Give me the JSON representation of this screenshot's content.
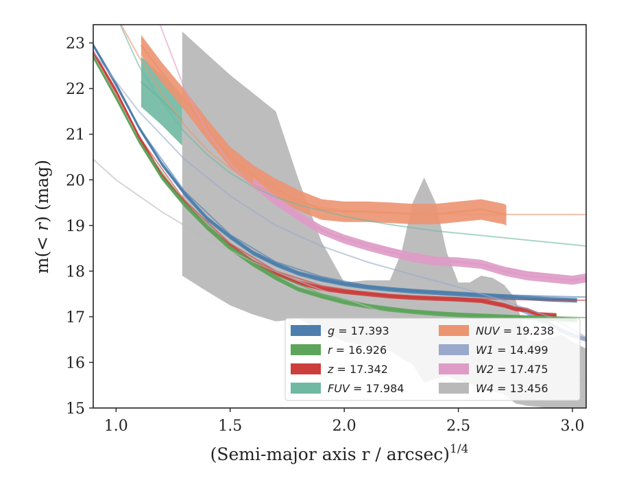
{
  "chart_data": {
    "type": "line",
    "xlabel": "(Semi-major axis r / arcsec)",
    "xlabel_exp": "1/4",
    "ylabel_prefix": "m(",
    "ylabel_math": "< r",
    "ylabel_suffix": ") (mag)",
    "xlim": [
      0.9,
      3.06
    ],
    "ylim": [
      23.4,
      15.0
    ],
    "y_inverted": true,
    "xticks": [
      1.0,
      1.5,
      2.0,
      2.5,
      3.0
    ],
    "xtick_labels": [
      "1.0",
      "1.5",
      "2.0",
      "2.5",
      "3.0"
    ],
    "yticks": [
      15,
      16,
      17,
      18,
      19,
      20,
      21,
      22,
      23
    ],
    "ytick_labels": [
      "15",
      "16",
      "17",
      "18",
      "19",
      "20",
      "21",
      "22",
      "23"
    ],
    "grid": false,
    "legend_position": "lower-right",
    "series": [
      {
        "name": "g = 17.393",
        "name_var": "g",
        "name_rest": " = 17.393",
        "color": "#4c7fad",
        "data_width": 0.1,
        "data": [
          [
            0.9,
            22.95
          ],
          [
            1.0,
            22.1
          ],
          [
            1.1,
            21.15
          ],
          [
            1.2,
            20.35
          ],
          [
            1.3,
            19.7
          ],
          [
            1.4,
            19.15
          ],
          [
            1.5,
            18.75
          ],
          [
            1.6,
            18.4
          ],
          [
            1.7,
            18.15
          ],
          [
            1.8,
            17.95
          ],
          [
            1.9,
            17.82
          ],
          [
            2.0,
            17.72
          ],
          [
            2.1,
            17.65
          ],
          [
            2.2,
            17.6
          ],
          [
            2.3,
            17.56
          ],
          [
            2.4,
            17.53
          ],
          [
            2.5,
            17.5
          ],
          [
            2.6,
            17.47
          ],
          [
            2.7,
            17.44
          ],
          [
            2.8,
            17.41
          ],
          [
            2.9,
            17.38
          ],
          [
            3.02,
            17.36
          ]
        ],
        "model": [
          [
            0.9,
            22.95
          ],
          [
            1.1,
            21.15
          ],
          [
            1.3,
            19.75
          ],
          [
            1.5,
            18.8
          ],
          [
            1.7,
            18.2
          ],
          [
            1.9,
            17.88
          ],
          [
            2.1,
            17.68
          ],
          [
            2.3,
            17.58
          ],
          [
            2.5,
            17.52
          ],
          [
            2.7,
            17.48
          ],
          [
            2.9,
            17.45
          ],
          [
            3.06,
            17.43
          ]
        ]
      },
      {
        "name": "r = 16.926",
        "name_var": "r",
        "name_rest": " = 16.926",
        "color": "#5ca55a",
        "data_width": 0.1,
        "data": [
          [
            0.9,
            22.7
          ],
          [
            1.0,
            21.8
          ],
          [
            1.1,
            20.85
          ],
          [
            1.2,
            20.05
          ],
          [
            1.3,
            19.45
          ],
          [
            1.4,
            18.95
          ],
          [
            1.5,
            18.5
          ],
          [
            1.6,
            18.15
          ],
          [
            1.7,
            17.85
          ],
          [
            1.8,
            17.6
          ],
          [
            1.9,
            17.45
          ],
          [
            2.0,
            17.32
          ],
          [
            2.1,
            17.23
          ],
          [
            2.2,
            17.16
          ],
          [
            2.3,
            17.11
          ],
          [
            2.4,
            17.07
          ],
          [
            2.5,
            17.04
          ],
          [
            2.6,
            17.02
          ],
          [
            2.7,
            17.0
          ],
          [
            2.8,
            16.98
          ],
          [
            2.9,
            16.96
          ],
          [
            3.02,
            16.93
          ]
        ],
        "model": [
          [
            0.9,
            22.7
          ],
          [
            1.1,
            20.85
          ],
          [
            1.3,
            19.5
          ],
          [
            1.5,
            18.55
          ],
          [
            1.7,
            17.92
          ],
          [
            1.9,
            17.5
          ],
          [
            2.1,
            17.27
          ],
          [
            2.3,
            17.14
          ],
          [
            2.5,
            17.07
          ],
          [
            2.7,
            17.03
          ],
          [
            2.9,
            17.0
          ],
          [
            3.06,
            16.98
          ]
        ]
      },
      {
        "name": "z = 17.342",
        "name_var": "z",
        "name_rest": " = 17.342",
        "color": "#cc3e3c",
        "data_width": 0.1,
        "data": [
          [
            0.9,
            22.8
          ],
          [
            1.0,
            21.95
          ],
          [
            1.1,
            20.95
          ],
          [
            1.2,
            20.1
          ],
          [
            1.3,
            19.5
          ],
          [
            1.4,
            18.95
          ],
          [
            1.5,
            18.55
          ],
          [
            1.6,
            18.2
          ],
          [
            1.7,
            17.95
          ],
          [
            1.8,
            17.75
          ],
          [
            1.9,
            17.62
          ],
          [
            2.0,
            17.55
          ],
          [
            2.1,
            17.5
          ],
          [
            2.2,
            17.45
          ],
          [
            2.3,
            17.42
          ],
          [
            2.4,
            17.4
          ],
          [
            2.5,
            17.38
          ],
          [
            2.6,
            17.35
          ],
          [
            2.7,
            17.25
          ],
          [
            2.75,
            17.17
          ],
          [
            2.8,
            17.15
          ],
          [
            2.85,
            17.05
          ],
          [
            2.93,
            17.03
          ]
        ],
        "model": [
          [
            0.9,
            22.8
          ],
          [
            1.1,
            20.95
          ],
          [
            1.3,
            19.55
          ],
          [
            1.5,
            18.6
          ],
          [
            1.7,
            18.0
          ],
          [
            1.9,
            17.68
          ],
          [
            2.1,
            17.52
          ],
          [
            2.3,
            17.44
          ],
          [
            2.5,
            17.4
          ],
          [
            2.7,
            17.38
          ],
          [
            2.9,
            17.37
          ],
          [
            3.06,
            17.36
          ]
        ]
      },
      {
        "name": "FUV = 17.984",
        "name_var": "FUV",
        "name_rest": " = 17.984",
        "color": "#6fb8a1",
        "data_width": 1.1,
        "data": [
          [
            1.11,
            22.15
          ],
          [
            1.2,
            21.75
          ],
          [
            1.29,
            21.3
          ]
        ],
        "model": [
          [
            0.9,
            24.8
          ],
          [
            1.0,
            23.6
          ],
          [
            1.1,
            22.5
          ],
          [
            1.2,
            21.7
          ],
          [
            1.3,
            21.05
          ],
          [
            1.4,
            20.55
          ],
          [
            1.5,
            20.15
          ],
          [
            1.6,
            19.85
          ],
          [
            1.7,
            19.62
          ],
          [
            1.8,
            19.45
          ],
          [
            2.0,
            19.2
          ],
          [
            2.2,
            19.02
          ],
          [
            2.4,
            18.88
          ],
          [
            2.6,
            18.78
          ],
          [
            2.8,
            18.68
          ],
          [
            3.06,
            18.55
          ]
        ]
      },
      {
        "name": "NUV = 19.238",
        "name_var": "NUV",
        "name_rest": " = 19.238",
        "color": "#ec9470",
        "data_width": 0.45,
        "data": [
          [
            1.11,
            22.95
          ],
          [
            1.2,
            22.35
          ],
          [
            1.3,
            21.75
          ],
          [
            1.4,
            21.1
          ],
          [
            1.5,
            20.5
          ],
          [
            1.6,
            20.1
          ],
          [
            1.7,
            19.8
          ],
          [
            1.8,
            19.55
          ],
          [
            1.9,
            19.35
          ],
          [
            2.0,
            19.3
          ],
          [
            2.1,
            19.3
          ],
          [
            2.2,
            19.28
          ],
          [
            2.3,
            19.25
          ],
          [
            2.4,
            19.25
          ],
          [
            2.5,
            19.3
          ],
          [
            2.6,
            19.35
          ],
          [
            2.7,
            19.25
          ],
          [
            2.71,
            19.22
          ]
        ],
        "model": [
          [
            1.0,
            23.6
          ],
          [
            1.1,
            22.7
          ],
          [
            1.2,
            21.9
          ],
          [
            1.3,
            21.2
          ],
          [
            1.4,
            20.65
          ],
          [
            1.5,
            20.25
          ],
          [
            1.6,
            19.9
          ],
          [
            1.7,
            19.68
          ],
          [
            1.8,
            19.5
          ],
          [
            1.9,
            19.4
          ],
          [
            2.0,
            19.33
          ],
          [
            2.2,
            19.28
          ],
          [
            2.4,
            19.25
          ],
          [
            2.6,
            19.24
          ],
          [
            2.8,
            19.24
          ],
          [
            3.06,
            19.24
          ]
        ]
      },
      {
        "name": "W1 = 14.499",
        "name_var": "W1",
        "name_rest": " = 14.499",
        "color": "#9aa8cc",
        "data_width": 0.1,
        "data": [
          [
            2.75,
            17.2
          ],
          [
            2.8,
            17.1
          ],
          [
            2.85,
            16.95
          ],
          [
            2.9,
            16.85
          ],
          [
            2.95,
            16.7
          ],
          [
            3.0,
            16.6
          ],
          [
            3.06,
            16.5
          ]
        ],
        "model": [
          [
            0.9,
            22.8
          ],
          [
            1.1,
            21.5
          ],
          [
            1.3,
            20.45
          ],
          [
            1.5,
            19.65
          ],
          [
            1.7,
            19.0
          ],
          [
            1.9,
            18.55
          ],
          [
            2.1,
            18.2
          ],
          [
            2.3,
            17.92
          ],
          [
            2.5,
            17.65
          ],
          [
            2.7,
            17.35
          ],
          [
            2.9,
            17.0
          ],
          [
            3.06,
            16.55
          ]
        ]
      },
      {
        "name": "W2 = 17.475",
        "name_var": "W2",
        "name_rest": " = 17.475",
        "color": "#de9bc6",
        "data_width": 0.2,
        "data": [
          [
            1.6,
            19.95
          ],
          [
            1.7,
            19.55
          ],
          [
            1.8,
            19.2
          ],
          [
            1.9,
            18.9
          ],
          [
            2.0,
            18.7
          ],
          [
            2.1,
            18.55
          ],
          [
            2.2,
            18.42
          ],
          [
            2.3,
            18.3
          ],
          [
            2.4,
            18.22
          ],
          [
            2.5,
            18.2
          ],
          [
            2.6,
            18.15
          ],
          [
            2.7,
            18.0
          ],
          [
            2.8,
            17.9
          ],
          [
            2.9,
            17.85
          ],
          [
            3.0,
            17.8
          ],
          [
            3.06,
            17.85
          ]
        ],
        "model": [
          [
            1.1,
            24.8
          ],
          [
            1.2,
            23.3
          ],
          [
            1.3,
            22.0
          ],
          [
            1.4,
            21.05
          ],
          [
            1.5,
            20.35
          ],
          [
            1.6,
            19.85
          ],
          [
            1.7,
            19.45
          ],
          [
            1.8,
            19.15
          ],
          [
            1.9,
            18.9
          ],
          [
            2.0,
            18.72
          ],
          [
            2.2,
            18.48
          ],
          [
            2.4,
            18.3
          ],
          [
            2.6,
            18.15
          ],
          [
            2.8,
            17.98
          ],
          [
            3.06,
            17.82
          ]
        ]
      },
      {
        "name": "W4 = 13.456",
        "name_var": "W4",
        "name_rest": " = 13.456",
        "color": "#b9b9b9",
        "band_upper": [
          [
            1.29,
            17.9
          ],
          [
            1.4,
            17.55
          ],
          [
            1.5,
            17.25
          ],
          [
            1.6,
            17.05
          ],
          [
            1.7,
            16.9
          ],
          [
            1.8,
            16.95
          ],
          [
            1.9,
            16.7
          ],
          [
            2.0,
            16.45
          ],
          [
            2.1,
            16.35
          ],
          [
            2.2,
            16.25
          ],
          [
            2.3,
            15.95
          ],
          [
            2.35,
            15.55
          ],
          [
            2.4,
            15.65
          ],
          [
            2.45,
            15.7
          ],
          [
            2.5,
            15.6
          ],
          [
            2.6,
            15.45
          ],
          [
            2.7,
            15.3
          ],
          [
            2.75,
            15.1
          ],
          [
            2.8,
            15.05
          ],
          [
            2.9,
            15.0
          ],
          [
            3.06,
            15.0
          ]
        ],
        "band_lower": [
          [
            1.29,
            23.25
          ],
          [
            1.4,
            22.75
          ],
          [
            1.5,
            22.3
          ],
          [
            1.6,
            21.9
          ],
          [
            1.7,
            21.5
          ],
          [
            1.8,
            20.0
          ],
          [
            1.9,
            18.65
          ],
          [
            2.0,
            17.75
          ],
          [
            2.1,
            17.8
          ],
          [
            2.2,
            17.8
          ],
          [
            2.25,
            18.4
          ],
          [
            2.3,
            19.5
          ],
          [
            2.35,
            20.05
          ],
          [
            2.4,
            19.5
          ],
          [
            2.45,
            18.4
          ],
          [
            2.5,
            17.75
          ],
          [
            2.55,
            17.75
          ],
          [
            2.6,
            17.9
          ],
          [
            2.65,
            17.85
          ],
          [
            2.7,
            17.7
          ],
          [
            2.75,
            17.4
          ],
          [
            2.8,
            16.5
          ],
          [
            2.85,
            16.45
          ],
          [
            2.9,
            16.55
          ],
          [
            2.95,
            16.6
          ],
          [
            3.0,
            16.45
          ],
          [
            3.06,
            16.3
          ]
        ],
        "model": [
          [
            0.9,
            20.45
          ],
          [
            1.0,
            20.0
          ],
          [
            1.2,
            19.3
          ],
          [
            1.4,
            18.7
          ],
          [
            1.6,
            18.2
          ],
          [
            1.8,
            17.78
          ],
          [
            2.0,
            17.4
          ],
          [
            2.2,
            17.05
          ],
          [
            2.4,
            16.72
          ],
          [
            2.6,
            16.38
          ],
          [
            2.8,
            16.05
          ],
          [
            3.06,
            15.6
          ]
        ]
      }
    ]
  }
}
